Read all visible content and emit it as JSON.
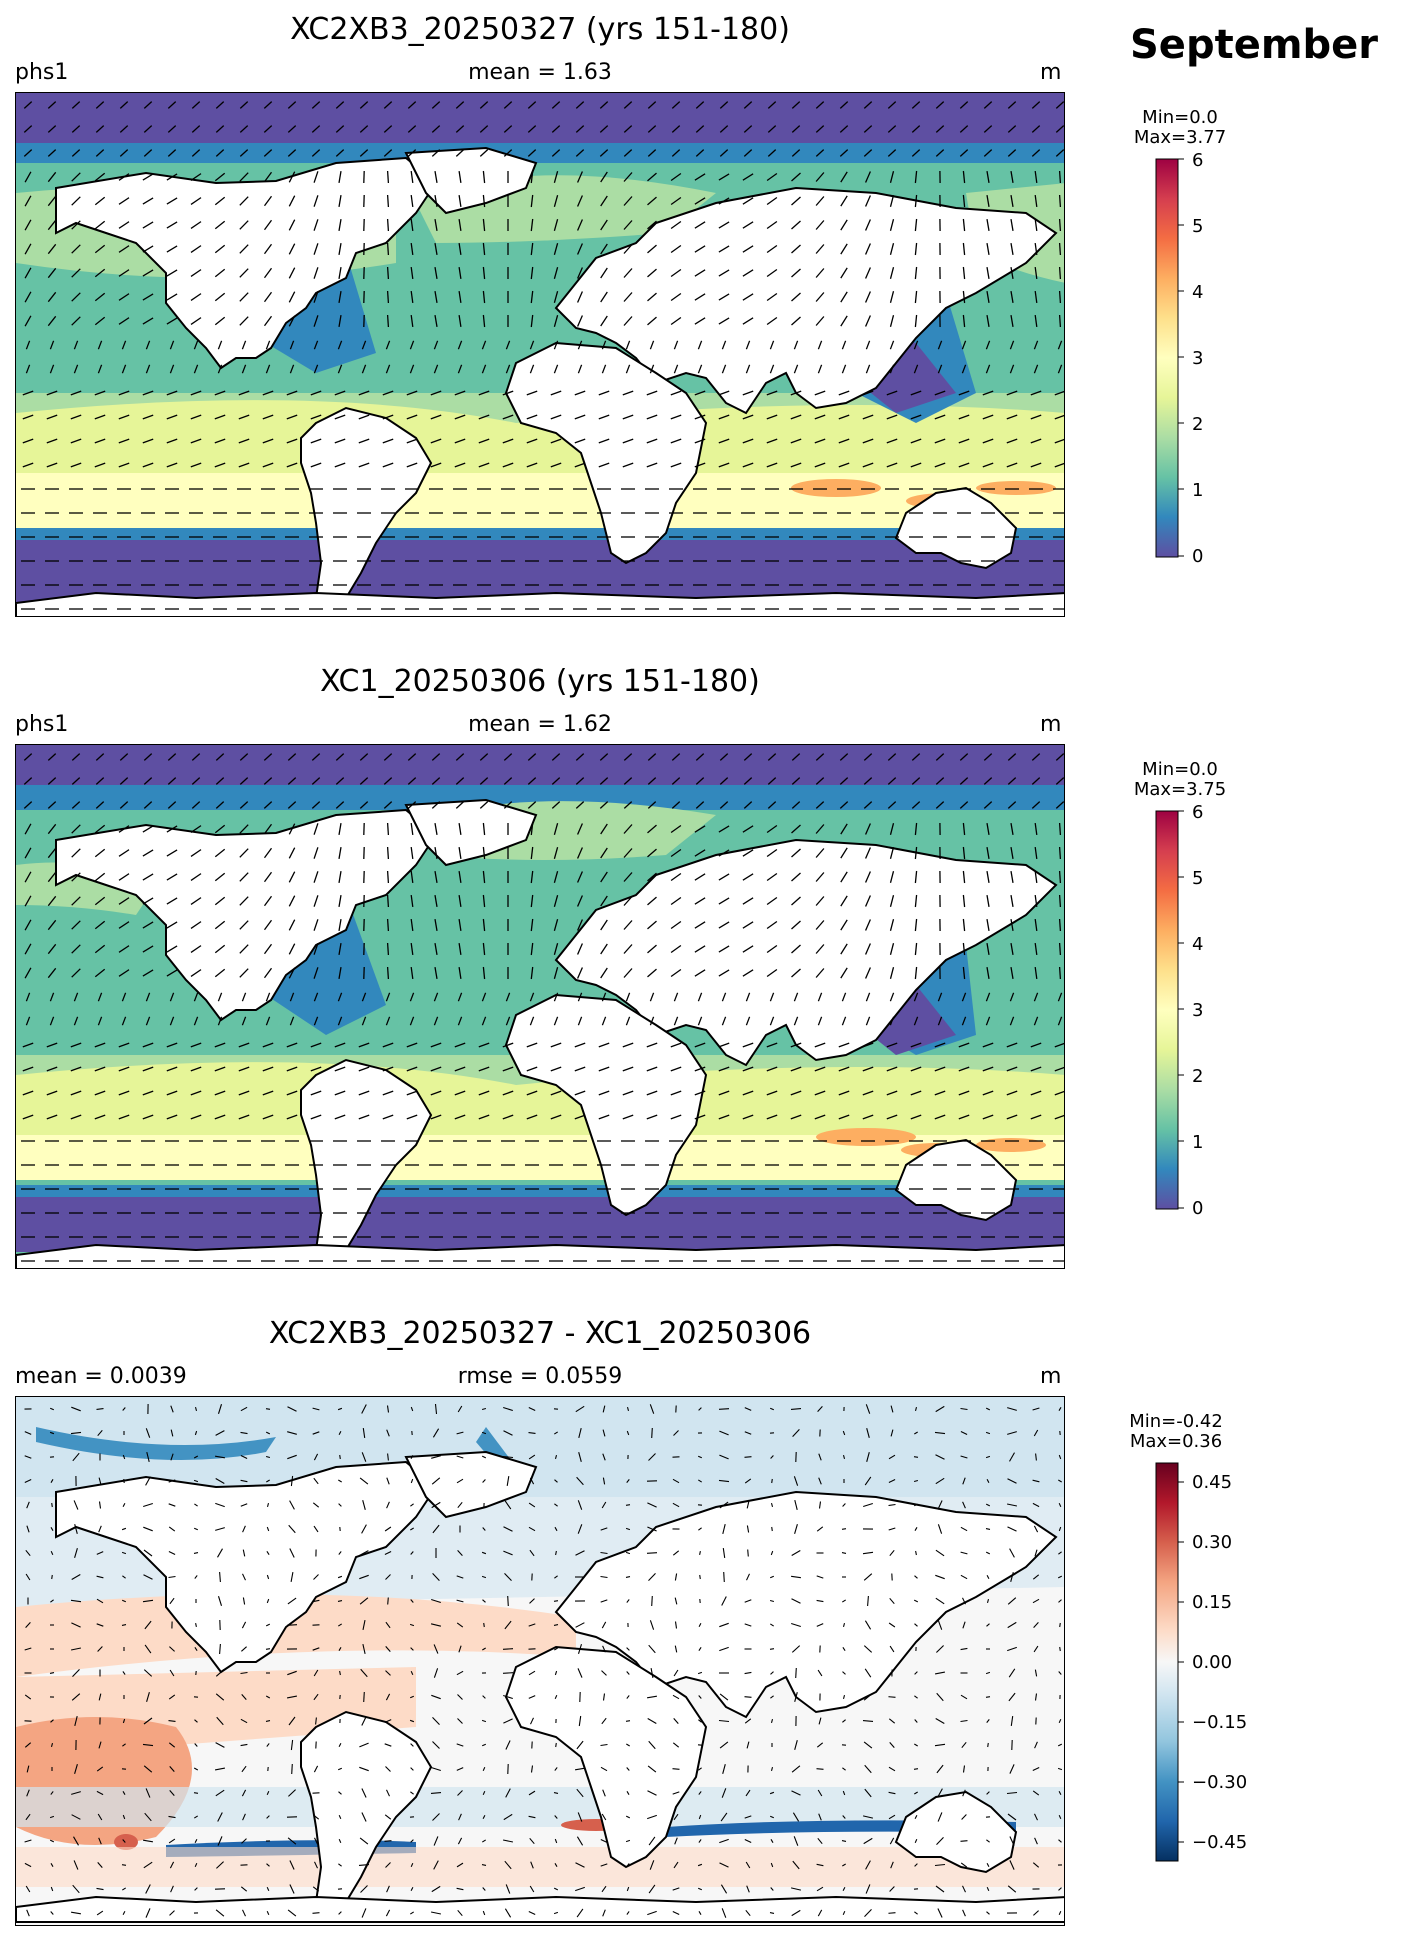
{
  "month": "September",
  "panels": [
    {
      "title": "XC2XB3_20250327 (yrs 151-180)",
      "left_label": "phs1",
      "center_label": "mean = 1.63",
      "right_label": "m",
      "cbar_stats": [
        "Min=0.0",
        "Max=3.77"
      ],
      "cbar_ticks": [
        "6",
        "5",
        "4",
        "3",
        "2",
        "1",
        "0"
      ]
    },
    {
      "title": "XC1_20250306 (yrs 151-180)",
      "left_label": "phs1",
      "center_label": "mean = 1.62",
      "right_label": "m",
      "cbar_stats": [
        "Min=0.0",
        "Max=3.75"
      ],
      "cbar_ticks": [
        "6",
        "5",
        "4",
        "3",
        "2",
        "1",
        "0"
      ]
    },
    {
      "title": "XC2XB3_20250327 - XC1_20250306",
      "left_label": "mean = 0.0039",
      "center_label": "rmse = 0.0559",
      "right_label": "m",
      "cbar_stats": [
        "Min=-0.42",
        "Max=0.36"
      ],
      "cbar_ticks": [
        "0.45",
        "0.30",
        "0.15",
        "0.00",
        "−0.15",
        "−0.30",
        "−0.45"
      ]
    }
  ],
  "colors": {
    "spectral": [
      "#5e4fa2",
      "#3288bd",
      "#66c2a5",
      "#abdda4",
      "#e6f598",
      "#ffffbf",
      "#fee08b",
      "#fdae61",
      "#f46d43",
      "#d53e4f",
      "#9e0142"
    ],
    "diverging": [
      "#053061",
      "#2166ac",
      "#4393c3",
      "#92c5de",
      "#d1e5f0",
      "#f7f7f7",
      "#fddbc7",
      "#f4a582",
      "#d6604d",
      "#b2182b",
      "#67001f"
    ]
  }
}
